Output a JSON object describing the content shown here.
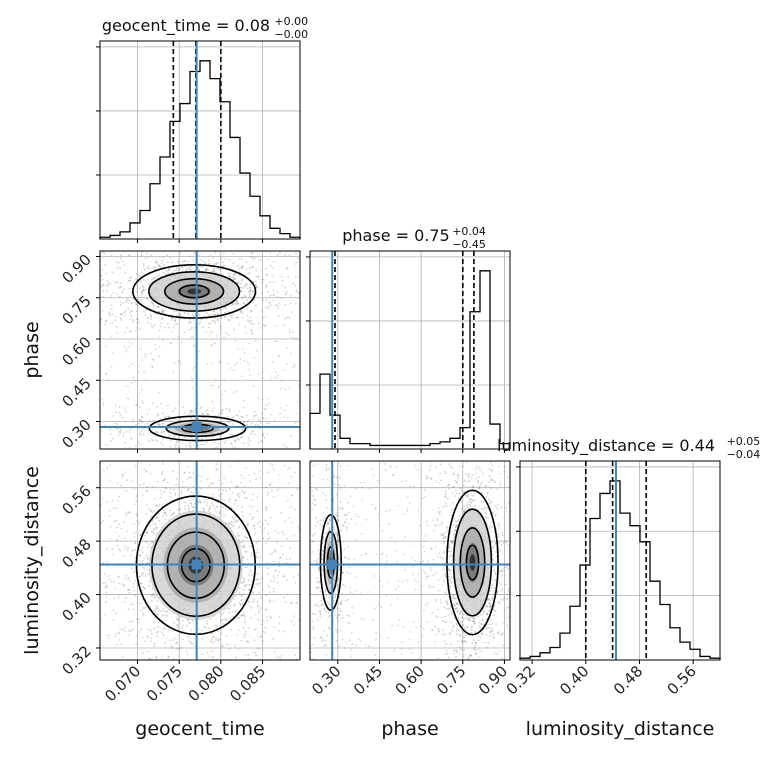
{
  "chart_data": {
    "type": "scatter",
    "kind": "corner-plot",
    "colors": {
      "truth": "#4682b4",
      "hist": "#000000",
      "grid": "#b0b0b0",
      "points": "#7f7f7f"
    },
    "grid": true,
    "parameters": [
      {
        "key": "geocent_time",
        "label": "geocent_time",
        "range": [
          0.0655,
          0.0895
        ],
        "ticks": [
          0.07,
          0.075,
          0.08,
          0.085
        ],
        "tick_labels": [
          "0.070",
          "0.075",
          "0.080",
          "0.085"
        ],
        "truth": 0.0771,
        "title": {
          "text": "geocent_time = 0.08",
          "upper": "+0.00",
          "lower": "−0.00"
        },
        "quantiles": [
          0.0743,
          0.077,
          0.08
        ],
        "hist": [
          0.01,
          0.02,
          0.04,
          0.09,
          0.16,
          0.31,
          0.46,
          0.66,
          0.76,
          0.94,
          1.0,
          0.9,
          0.77,
          0.57,
          0.37,
          0.24,
          0.13,
          0.06,
          0.03,
          0.01
        ]
      },
      {
        "key": "phase",
        "label": "phase",
        "range": [
          0.2,
          0.92
        ],
        "ticks": [
          0.3,
          0.45,
          0.6,
          0.75,
          0.9
        ],
        "tick_labels": [
          "0.30",
          "0.45",
          "0.60",
          "0.75",
          "0.90"
        ],
        "truth": 0.28,
        "title": {
          "text": "phase = 0.75",
          "upper": "+0.04",
          "lower": "−0.45"
        },
        "quantiles": [
          0.29,
          0.75,
          0.79
        ],
        "hist": [
          0.2,
          0.42,
          0.19,
          0.06,
          0.03,
          0.03,
          0.02,
          0.02,
          0.02,
          0.02,
          0.02,
          0.02,
          0.03,
          0.04,
          0.06,
          0.12,
          0.77,
          1.0,
          0.14,
          0.03
        ]
      },
      {
        "key": "luminosity_distance",
        "label": "luminosity_distance",
        "range": [
          0.302,
          0.6
        ],
        "ticks": [
          0.32,
          0.4,
          0.48,
          0.56
        ],
        "tick_labels": [
          "0.32",
          "0.40",
          "0.48",
          "0.56"
        ],
        "truth": 0.445,
        "title": {
          "text": "luminosity_distance = 0.44",
          "upper": "+0.05",
          "lower": "−0.04"
        },
        "quantiles": [
          0.4,
          0.44,
          0.49
        ],
        "hist": [
          0.01,
          0.02,
          0.04,
          0.07,
          0.15,
          0.3,
          0.53,
          0.79,
          0.93,
          1.0,
          0.82,
          0.75,
          0.66,
          0.44,
          0.31,
          0.18,
          0.1,
          0.06,
          0.02,
          0.01
        ]
      }
    ],
    "ylabels": [
      "phase",
      "luminosity_distance"
    ],
    "densities": {
      "phase|geocent_time": [
        {
          "weight": 0.78,
          "mx": 0.0768,
          "my": 0.773,
          "sx": 0.0032,
          "sy": 0.042
        },
        {
          "weight": 0.22,
          "mx": 0.0772,
          "my": 0.275,
          "sx": 0.0034,
          "sy": 0.026
        }
      ],
      "luminosity_distance|geocent_time": [
        {
          "weight": 1.0,
          "mx": 0.077,
          "my": 0.444,
          "sx": 0.0031,
          "sy": 0.045
        }
      ],
      "luminosity_distance|phase": [
        {
          "weight": 0.8,
          "mx": 0.785,
          "my": 0.448,
          "sx": 0.04,
          "sy": 0.047
        },
        {
          "weight": 0.2,
          "mx": 0.275,
          "my": 0.448,
          "sx": 0.022,
          "sy": 0.042
        }
      ]
    }
  }
}
